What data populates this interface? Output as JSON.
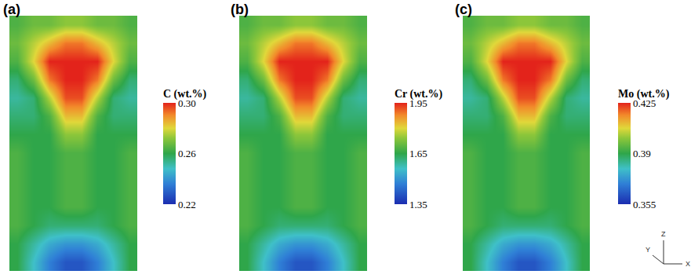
{
  "chart_data": [
    {
      "type": "heatmap",
      "label": "(a)",
      "colorbar_title": "C (wt.%)",
      "tick_labels": false,
      "colorbar": {
        "range": [
          0.22,
          0.3
        ],
        "ticks": [
          0.22,
          0.26,
          {
            "value": 0.3,
            "label": "0.30"
          }
        ]
      },
      "z": [
        [
          0.264,
          0.268,
          0.268,
          0.272,
          0.272,
          0.268,
          0.268,
          0.264
        ],
        [
          0.268,
          0.276,
          0.284,
          0.292,
          0.292,
          0.284,
          0.276,
          0.268
        ],
        [
          0.264,
          0.28,
          0.3,
          0.3,
          0.3,
          0.3,
          0.28,
          0.264
        ],
        [
          0.256,
          0.268,
          0.292,
          0.3,
          0.3,
          0.292,
          0.268,
          0.256
        ],
        [
          0.252,
          0.256,
          0.276,
          0.296,
          0.296,
          0.276,
          0.256,
          0.252
        ],
        [
          0.256,
          0.256,
          0.264,
          0.284,
          0.284,
          0.264,
          0.256,
          0.256
        ],
        [
          0.26,
          0.26,
          0.26,
          0.272,
          0.272,
          0.26,
          0.26,
          0.26
        ],
        [
          0.264,
          0.26,
          0.26,
          0.264,
          0.264,
          0.26,
          0.26,
          0.264
        ],
        [
          0.264,
          0.26,
          0.26,
          0.264,
          0.264,
          0.26,
          0.26,
          0.264
        ],
        [
          0.264,
          0.26,
          0.26,
          0.264,
          0.264,
          0.26,
          0.26,
          0.264
        ],
        [
          0.264,
          0.26,
          0.26,
          0.264,
          0.264,
          0.26,
          0.26,
          0.264
        ],
        [
          0.264,
          0.26,
          0.256,
          0.256,
          0.256,
          0.256,
          0.26,
          0.264
        ],
        [
          0.26,
          0.252,
          0.244,
          0.24,
          0.24,
          0.244,
          0.252,
          0.26
        ],
        [
          0.26,
          0.248,
          0.236,
          0.228,
          0.228,
          0.236,
          0.248,
          0.26
        ]
      ]
    },
    {
      "type": "heatmap",
      "label": "(b)",
      "colorbar_title": "Cr (wt.%)",
      "tick_labels": false,
      "colorbar": {
        "range": [
          1.35,
          1.95
        ],
        "ticks": [
          1.35,
          1.65,
          1.95
        ]
      },
      "z": [
        [
          1.68,
          1.71,
          1.71,
          1.74,
          1.74,
          1.71,
          1.71,
          1.68
        ],
        [
          1.71,
          1.77,
          1.83,
          1.89,
          1.89,
          1.83,
          1.77,
          1.71
        ],
        [
          1.68,
          1.8,
          1.95,
          1.95,
          1.95,
          1.95,
          1.8,
          1.68
        ],
        [
          1.62,
          1.71,
          1.89,
          1.95,
          1.95,
          1.89,
          1.71,
          1.62
        ],
        [
          1.59,
          1.62,
          1.77,
          1.92,
          1.92,
          1.77,
          1.62,
          1.59
        ],
        [
          1.62,
          1.62,
          1.68,
          1.83,
          1.83,
          1.68,
          1.62,
          1.62
        ],
        [
          1.65,
          1.65,
          1.65,
          1.74,
          1.74,
          1.65,
          1.65,
          1.65
        ],
        [
          1.68,
          1.65,
          1.65,
          1.68,
          1.68,
          1.65,
          1.65,
          1.68
        ],
        [
          1.68,
          1.65,
          1.65,
          1.68,
          1.68,
          1.65,
          1.65,
          1.68
        ],
        [
          1.68,
          1.65,
          1.65,
          1.68,
          1.68,
          1.65,
          1.65,
          1.68
        ],
        [
          1.68,
          1.65,
          1.65,
          1.68,
          1.68,
          1.65,
          1.65,
          1.68
        ],
        [
          1.68,
          1.65,
          1.62,
          1.62,
          1.62,
          1.62,
          1.65,
          1.68
        ],
        [
          1.65,
          1.59,
          1.53,
          1.5,
          1.5,
          1.53,
          1.59,
          1.65
        ],
        [
          1.65,
          1.56,
          1.47,
          1.41,
          1.41,
          1.47,
          1.56,
          1.65
        ]
      ]
    },
    {
      "type": "heatmap",
      "label": "(c)",
      "colorbar_title": "Mo (wt.%)",
      "tick_labels": false,
      "colorbar": {
        "range": [
          0.355,
          0.425
        ],
        "ticks": [
          0.355,
          0.39,
          0.425
        ]
      },
      "annotations": [
        "Z",
        "Y",
        "X"
      ],
      "z": [
        [
          0.3935,
          0.397,
          0.397,
          0.4005,
          0.4005,
          0.397,
          0.397,
          0.3935
        ],
        [
          0.397,
          0.404,
          0.411,
          0.418,
          0.418,
          0.411,
          0.404,
          0.397
        ],
        [
          0.3935,
          0.4075,
          0.425,
          0.425,
          0.425,
          0.425,
          0.4075,
          0.3935
        ],
        [
          0.3865,
          0.397,
          0.418,
          0.425,
          0.425,
          0.418,
          0.397,
          0.3865
        ],
        [
          0.383,
          0.3865,
          0.404,
          0.4215,
          0.4215,
          0.404,
          0.3865,
          0.383
        ],
        [
          0.3865,
          0.3865,
          0.3935,
          0.411,
          0.411,
          0.3935,
          0.3865,
          0.3865
        ],
        [
          0.39,
          0.39,
          0.39,
          0.4005,
          0.4005,
          0.39,
          0.39,
          0.39
        ],
        [
          0.3935,
          0.39,
          0.39,
          0.3935,
          0.3935,
          0.39,
          0.39,
          0.3935
        ],
        [
          0.3935,
          0.39,
          0.39,
          0.3935,
          0.3935,
          0.39,
          0.39,
          0.3935
        ],
        [
          0.3935,
          0.39,
          0.39,
          0.3935,
          0.3935,
          0.39,
          0.39,
          0.3935
        ],
        [
          0.3935,
          0.39,
          0.39,
          0.3935,
          0.3935,
          0.39,
          0.39,
          0.3935
        ],
        [
          0.3935,
          0.39,
          0.3865,
          0.3865,
          0.3865,
          0.3865,
          0.39,
          0.3935
        ],
        [
          0.39,
          0.383,
          0.376,
          0.3725,
          0.3725,
          0.376,
          0.383,
          0.39
        ],
        [
          0.39,
          0.3795,
          0.369,
          0.362,
          0.362,
          0.369,
          0.3795,
          0.39
        ]
      ]
    }
  ]
}
